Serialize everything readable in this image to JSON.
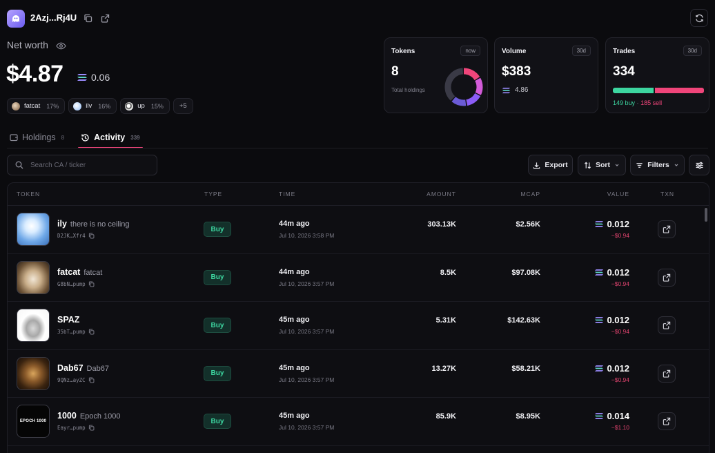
{
  "header": {
    "wallet": "2Azj...Rj4U",
    "net_worth_label": "Net worth",
    "net_worth_value": "$4.87",
    "net_worth_sol": "0.06",
    "chips": [
      {
        "name": "fatcat",
        "pct": "17%",
        "color": "#a88b6a"
      },
      {
        "name": "ilv",
        "pct": "16%",
        "color": "#b9d7ff"
      },
      {
        "name": "up",
        "pct": "15%",
        "color": "#e8e8e8"
      }
    ],
    "more_chip": "+5"
  },
  "cards": {
    "tokens": {
      "title": "Tokens",
      "badge": "now",
      "value": "8",
      "sub": "Total holdings"
    },
    "volume": {
      "title": "Volume",
      "badge": "30d",
      "value": "$383",
      "sol": "4.86"
    },
    "trades": {
      "title": "Trades",
      "badge": "30d",
      "value": "334",
      "buy_text": "149 buy",
      "sep": "·",
      "sell_text": "185 sell",
      "buy_fraction": 0.446
    }
  },
  "donut": {
    "segments": [
      {
        "color": "#f0457a",
        "fraction": 0.17
      },
      {
        "color": "#d35bd9",
        "fraction": 0.16
      },
      {
        "color": "#8b5cf6",
        "fraction": 0.15
      },
      {
        "color": "#6b5bd6",
        "fraction": 0.14
      },
      {
        "color": "#3a3a46",
        "fraction": 0.38
      }
    ]
  },
  "tabs": [
    {
      "label": "Holdings",
      "count": "8"
    },
    {
      "label": "Activity",
      "count": "339"
    }
  ],
  "toolbar": {
    "search_placeholder": "Search CA / ticker",
    "export": "Export",
    "sort": "Sort",
    "filters": "Filters"
  },
  "table": {
    "headers": {
      "token": "TOKEN",
      "type": "TYPE",
      "time": "TIME",
      "amount": "AMOUNT",
      "mcap": "MCAP",
      "value": "VALUE",
      "txn": "TXN"
    },
    "rows": [
      {
        "symbol": "ily",
        "name": "there is no ceiling",
        "ca": "D2JK…Xfr4",
        "type": "Buy",
        "time_ago": "44m ago",
        "time": "Jul 10, 2026 3:58 PM",
        "amount": "303.13K",
        "mcap": "$2.56K",
        "value": "0.012",
        "value_usd": "−$0.94",
        "thumb": "sky"
      },
      {
        "symbol": "fatcat",
        "name": "fatcat",
        "ca": "G8bN…pump",
        "type": "Buy",
        "time_ago": "44m ago",
        "time": "Jul 10, 2026 3:57 PM",
        "amount": "8.5K",
        "mcap": "$97.08K",
        "value": "0.012",
        "value_usd": "−$0.94",
        "thumb": "cat"
      },
      {
        "symbol": "SPAZ",
        "name": "",
        "ca": "35bT…pump",
        "type": "Buy",
        "time_ago": "45m ago",
        "time": "Jul 10, 2026 3:57 PM",
        "amount": "5.31K",
        "mcap": "$142.63K",
        "value": "0.012",
        "value_usd": "−$0.94",
        "thumb": "spaz"
      },
      {
        "symbol": "Dab67",
        "name": "Dab67",
        "ca": "9QNz…ayZC",
        "type": "Buy",
        "time_ago": "45m ago",
        "time": "Jul 10, 2026 3:57 PM",
        "amount": "13.27K",
        "mcap": "$58.21K",
        "value": "0.012",
        "value_usd": "−$0.94",
        "thumb": "dab"
      },
      {
        "symbol": "1000",
        "name": "Epoch 1000",
        "ca": "Eayr…pump",
        "type": "Buy",
        "time_ago": "45m ago",
        "time": "Jul 10, 2026 3:57 PM",
        "amount": "85.9K",
        "mcap": "$8.95K",
        "value": "0.014",
        "value_usd": "−$1.10",
        "thumb": "epoch",
        "thumb_text": "EPOCH 1000"
      }
    ]
  },
  "colors": {
    "accent": "#f0457a",
    "buy": "#3dd6a0",
    "sell": "#f0457a"
  }
}
